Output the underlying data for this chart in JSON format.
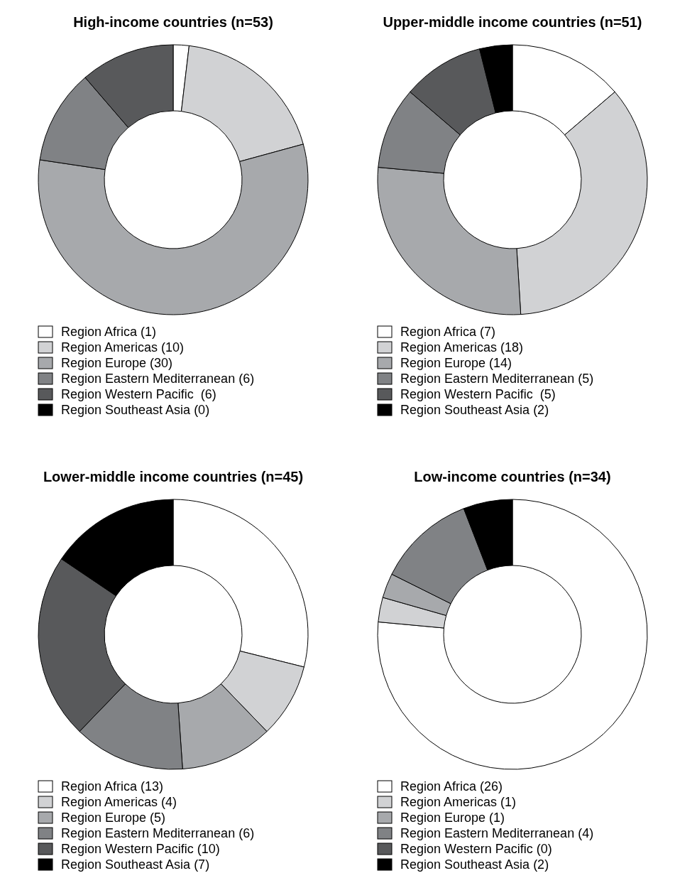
{
  "chart_data": [
    {
      "type": "donut",
      "title": "High-income countries (n=53)",
      "categories": [
        "Region Africa (1)",
        "Region Americas (10)",
        "Region Europe (30)",
        "Region Eastern Mediterranean (6)",
        "Region Western Pacific  (6)",
        "Region Southeast Asia (0)"
      ],
      "values": [
        1,
        10,
        30,
        6,
        6,
        0
      ],
      "colors": [
        "#ffffff",
        "#d1d2d4",
        "#a7a9ac",
        "#808285",
        "#58595b",
        "#000000"
      ],
      "legend": "bottom"
    },
    {
      "type": "donut",
      "title": "Upper-middle income countries (n=51)",
      "categories": [
        "Region Africa (7)",
        "Region Americas (18)",
        "Region Europe (14)",
        "Region Eastern Mediterranean (5)",
        "Region Western Pacific  (5)",
        "Region Southeast Asia (2)"
      ],
      "values": [
        7,
        18,
        14,
        5,
        5,
        2
      ],
      "colors": [
        "#ffffff",
        "#d1d2d4",
        "#a7a9ac",
        "#808285",
        "#58595b",
        "#000000"
      ],
      "legend": "bottom"
    },
    {
      "type": "donut",
      "title": "Lower-middle income countries (n=45)",
      "categories": [
        "Region Africa (13)",
        "Region Americas (4)",
        "Region Europe (5)",
        "Region Eastern Mediterranean (6)",
        "Region Western Pacific (10)",
        "Region Southeast Asia (7)"
      ],
      "values": [
        13,
        4,
        5,
        6,
        10,
        7
      ],
      "colors": [
        "#ffffff",
        "#d1d2d4",
        "#a7a9ac",
        "#808285",
        "#58595b",
        "#000000"
      ],
      "legend": "bottom"
    },
    {
      "type": "donut",
      "title": "Low-income countries (n=34)",
      "categories": [
        "Region Africa (26)",
        "Region Americas (1)",
        "Region Europe (1)",
        "Region Eastern Mediterranean (4)",
        "Region Western Pacific (0)",
        "Region Southeast Asia (2)"
      ],
      "values": [
        26,
        1,
        1,
        4,
        0,
        2
      ],
      "colors": [
        "#ffffff",
        "#d1d2d4",
        "#a7a9ac",
        "#808285",
        "#58595b",
        "#000000"
      ],
      "legend": "bottom"
    }
  ]
}
